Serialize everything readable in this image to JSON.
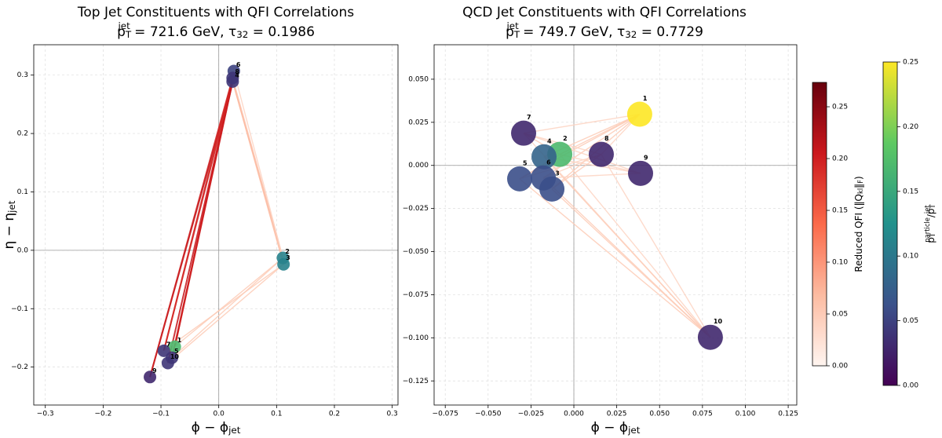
{
  "chart_data": [
    {
      "type": "scatter",
      "title": "Top Jet Constituents with QFI Correlations",
      "subtitle": [
        "p",
        "T",
        "jet",
        " = 721.6 GeV, ",
        "τ",
        "32",
        " = 0.1986"
      ],
      "x_label": [
        "ϕ − ϕ",
        "jet"
      ],
      "y_label": [
        "η − η",
        "jet"
      ],
      "labels": [
        "1",
        "2",
        "3",
        "4",
        "5",
        "6",
        "7",
        "8",
        "9",
        "10"
      ],
      "x": [
        -0.076,
        0.111,
        0.112,
        0.024,
        -0.081,
        0.026,
        -0.095,
        0.024,
        -0.119,
        -0.088
      ],
      "y": [
        -0.165,
        -0.013,
        -0.024,
        0.289,
        -0.184,
        0.307,
        -0.172,
        0.295,
        -0.217,
        -0.193
      ],
      "pt_fraction": [
        0.17,
        0.11,
        0.11,
        0.04,
        0.04,
        0.05,
        0.04,
        0.04,
        0.03,
        0.04
      ],
      "edges": {
        "source": [
          3,
          3,
          3,
          3,
          3,
          7,
          7,
          7,
          3,
          3,
          7,
          1,
          1,
          2,
          2,
          5
        ],
        "target": [
          0,
          6,
          4,
          9,
          8,
          0,
          6,
          8,
          1,
          2,
          1,
          0,
          4,
          6,
          9,
          1
        ],
        "qfi": [
          0.21,
          0.2,
          0.2,
          0.21,
          0.22,
          0.2,
          0.19,
          0.2,
          0.07,
          0.07,
          0.06,
          0.05,
          0.05,
          0.05,
          0.05,
          0.04
        ]
      },
      "xlim": [
        -0.32,
        0.31
      ],
      "xticks": [
        {
          "value": -0.3,
          "label": "−0.3"
        },
        {
          "value": -0.2,
          "label": "−0.2"
        },
        {
          "value": -0.1,
          "label": "−0.1"
        },
        {
          "value": 0,
          "label": "0.0"
        },
        0.1,
        0.2,
        0.3
      ],
      "ylim": [
        -0.265,
        0.352
      ],
      "yticks": [
        {
          "value": -0.2,
          "label": "−0.2"
        },
        {
          "value": -0.1,
          "label": "−0.1"
        },
        {
          "value": 0,
          "label": "0.0"
        },
        0.1,
        0.2,
        0.3
      ],
      "grid": true
    },
    {
      "type": "scatter",
      "title": "QCD Jet Constituents with QFI Correlations",
      "subtitle": [
        "p",
        "T",
        "jet",
        " = 749.7 GeV, ",
        "τ",
        "32",
        " = 0.7729"
      ],
      "x_label": [
        "ϕ − ϕ",
        "jet"
      ],
      "labels": [
        "1",
        "2",
        "3",
        "4",
        "5",
        "6",
        "7",
        "8",
        "9",
        "10"
      ],
      "x": [
        0.0384,
        -0.0082,
        -0.0128,
        -0.0174,
        -0.0316,
        -0.0178,
        -0.0293,
        0.016,
        0.0389,
        0.0796
      ],
      "y": [
        0.0297,
        0.0064,
        -0.0137,
        0.005,
        -0.0078,
        -0.0073,
        0.0187,
        0.0064,
        -0.0046,
        -0.0997
      ],
      "pt_fraction": [
        0.25,
        0.17,
        0.06,
        0.08,
        0.06,
        0.06,
        0.03,
        0.03,
        0.03,
        0.03
      ],
      "edges": {
        "source": [
          0,
          0,
          0,
          0,
          0,
          0,
          0,
          9,
          9,
          9,
          9,
          9,
          9,
          9,
          6,
          6,
          6,
          4,
          4,
          5,
          2,
          3,
          1,
          5
        ],
        "target": [
          1,
          2,
          3,
          4,
          5,
          6,
          7,
          4,
          5,
          2,
          6,
          3,
          1,
          7,
          1,
          7,
          8,
          1,
          7,
          7,
          7,
          8,
          8,
          8
        ],
        "qfi": [
          0.05,
          0.05,
          0.05,
          0.05,
          0.05,
          0.04,
          0.04,
          0.05,
          0.05,
          0.05,
          0.04,
          0.05,
          0.04,
          0.04,
          0.05,
          0.04,
          0.04,
          0.05,
          0.04,
          0.04,
          0.05,
          0.04,
          0.04,
          0.04
        ]
      },
      "xlim": [
        -0.0815,
        0.13
      ],
      "xticks": [
        {
          "value": -0.075,
          "label": "−0.075"
        },
        {
          "value": -0.05,
          "label": "−0.050"
        },
        {
          "value": -0.025,
          "label": "−0.025"
        },
        {
          "value": 0,
          "label": "0.000"
        },
        0.025,
        {
          "value": 0.05,
          "label": "0.050"
        },
        0.075,
        {
          "value": 0.1,
          "label": "0.100"
        },
        0.125
      ],
      "ylim": [
        -0.139,
        0.07
      ],
      "yticks": [
        {
          "value": -0.125,
          "label": "−0.125"
        },
        {
          "value": -0.1,
          "label": "−0.100"
        },
        {
          "value": -0.075,
          "label": "−0.075"
        },
        {
          "value": -0.05,
          "label": "−0.050"
        },
        {
          "value": -0.025,
          "label": "−0.025"
        },
        {
          "value": 0,
          "label": "0.000"
        },
        0.025,
        {
          "value": 0.05,
          "label": "0.050"
        }
      ],
      "grid": true,
      "colorbars": [
        {
          "label": [
            "Reduced QFI (‖Q",
            "kl",
            "‖",
            "F",
            ")"
          ],
          "lim": [
            0,
            0.2735
          ],
          "ticks": [
            {
              "value": 0,
              "label": "0.00"
            },
            0.05,
            {
              "value": 0.1,
              "label": "0.10"
            },
            0.15,
            {
              "value": 0.2,
              "label": "0.20"
            },
            0.25
          ],
          "colormap": [
            "#fff5f0",
            "#fcbba1",
            "#fb6a4a",
            "#cb181d",
            "#67000d"
          ]
        },
        {
          "label": [
            "p",
            "T",
            "particle",
            "/p",
            "T",
            "jet"
          ],
          "lim": [
            0,
            0.25
          ],
          "ticks": [
            {
              "value": 0,
              "label": "0.00"
            },
            0.05,
            {
              "value": 0.1,
              "label": "0.10"
            },
            0.15,
            {
              "value": 0.2,
              "label": "0.20"
            },
            0.25
          ],
          "colormap": [
            "#440154",
            "#3b528b",
            "#21918c",
            "#5ec962",
            "#fde725"
          ]
        }
      ]
    }
  ]
}
